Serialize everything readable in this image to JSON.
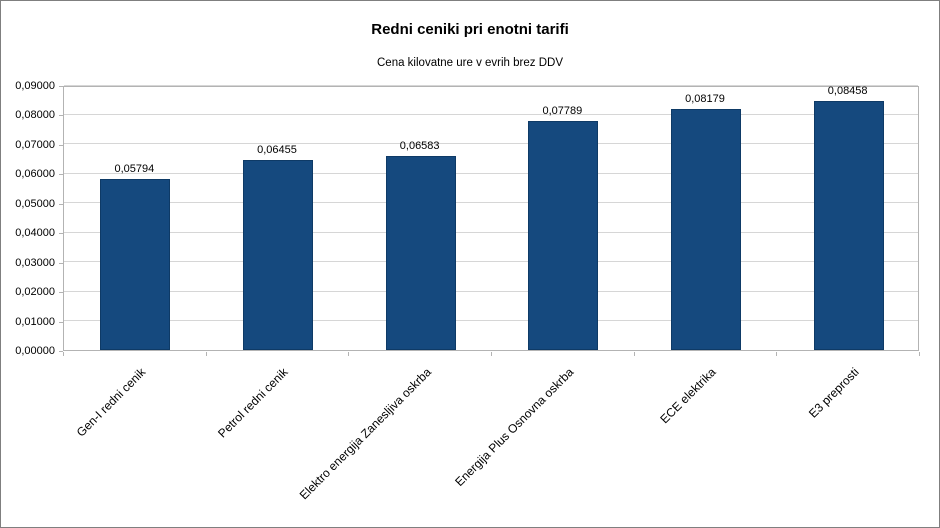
{
  "chart_data": {
    "type": "bar",
    "title": "Redni ceniki pri enotni tarifi",
    "subtitle": "Cena kilovatne ure v evrih brez DDV",
    "categories": [
      "Gen-I redni cenik",
      "Petrol redni cenik",
      "Elektro energija Zanesljiva oskrba",
      "Energija Plus Osnovna oskrba",
      "ECE elektrika",
      "E3 preprosti"
    ],
    "values": [
      0.05794,
      0.06455,
      0.06583,
      0.07789,
      0.08179,
      0.08458
    ],
    "value_labels": [
      "0,05794",
      "0,06455",
      "0,06583",
      "0,07789",
      "0,08179",
      "0,08458"
    ],
    "xlabel": "",
    "ylabel": "",
    "ylim": [
      0,
      0.09
    ],
    "y_tick_step": 0.01,
    "y_tick_labels": [
      "0,00000",
      "0,01000",
      "0,02000",
      "0,03000",
      "0,04000",
      "0,05000",
      "0,06000",
      "0,07000",
      "0,08000",
      "0,09000"
    ],
    "grid": true,
    "legend": "none",
    "colors": {
      "bar_fill": "#15497e",
      "bar_border": "#0e3a66",
      "grid_line": "#d6d6d6",
      "axis_line": "#b3b3b3",
      "text": "#000000"
    }
  }
}
